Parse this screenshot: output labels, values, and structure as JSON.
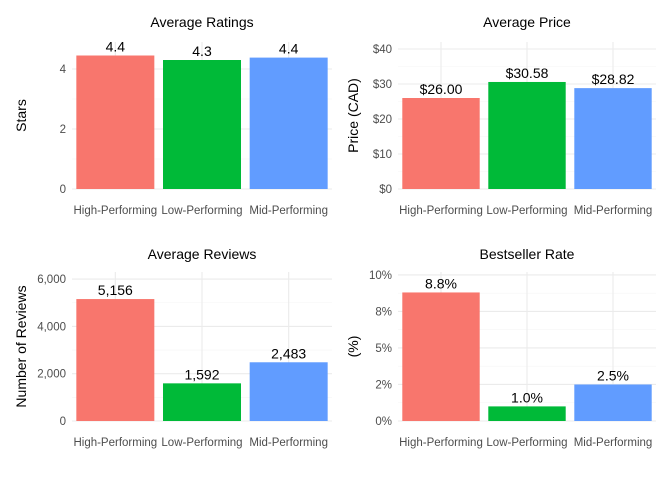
{
  "chart_data": [
    {
      "type": "bar",
      "title": "Average Ratings",
      "xlabel": "",
      "ylabel": "Stars",
      "categories": [
        "High-Performing",
        "Low-Performing",
        "Mid-Performing"
      ],
      "values": [
        4.45,
        4.3,
        4.38
      ],
      "value_labels": [
        "4.4",
        "4.3",
        "4.4"
      ],
      "ylim": [
        0,
        4.9
      ],
      "yticks": [
        0,
        2,
        4
      ],
      "ytick_labels": [
        "0",
        "2",
        "4"
      ],
      "colors": [
        "#F8766D",
        "#00BA38",
        "#619CFF"
      ],
      "grid": true
    },
    {
      "type": "bar",
      "title": "Average Price",
      "xlabel": "",
      "ylabel": "Price (CAD)",
      "categories": [
        "High-Performing",
        "Low-Performing",
        "Mid-Performing"
      ],
      "values": [
        26.0,
        30.58,
        28.82
      ],
      "value_labels": [
        "$26.00",
        "$30.58",
        "$28.82"
      ],
      "ylim": [
        0,
        42
      ],
      "yticks": [
        0,
        10,
        20,
        30,
        40
      ],
      "ytick_labels": [
        "$0",
        "$10",
        "$20",
        "$30",
        "$40"
      ],
      "colors": [
        "#F8766D",
        "#00BA38",
        "#619CFF"
      ],
      "grid": true
    },
    {
      "type": "bar",
      "title": "Average Reviews",
      "xlabel": "",
      "ylabel": "Number of Reviews",
      "categories": [
        "High-Performing",
        "Low-Performing",
        "Mid-Performing"
      ],
      "values": [
        5156,
        1592,
        2483
      ],
      "value_labels": [
        "5,156",
        "1,592",
        "2,483"
      ],
      "ylim": [
        0,
        6300
      ],
      "yticks": [
        0,
        2000,
        4000,
        6000
      ],
      "ytick_labels": [
        "0",
        "2,000",
        "4,000",
        "6,000"
      ],
      "colors": [
        "#F8766D",
        "#00BA38",
        "#619CFF"
      ],
      "grid": true
    },
    {
      "type": "bar",
      "title": "Bestseller Rate",
      "xlabel": "",
      "ylabel": "(%)",
      "categories": [
        "High-Performing",
        "Low-Performing",
        "Mid-Performing"
      ],
      "values": [
        8.8,
        1.0,
        2.5
      ],
      "value_labels": [
        "8.8%",
        "1.0%",
        "2.5%"
      ],
      "ylim": [
        0,
        10.2
      ],
      "yticks": [
        0,
        2.5,
        5,
        7.5,
        10
      ],
      "ytick_labels": [
        "0%",
        "2%",
        "5%",
        "8%",
        "10%"
      ],
      "colors": [
        "#F8766D",
        "#00BA38",
        "#619CFF"
      ],
      "grid": true
    }
  ]
}
